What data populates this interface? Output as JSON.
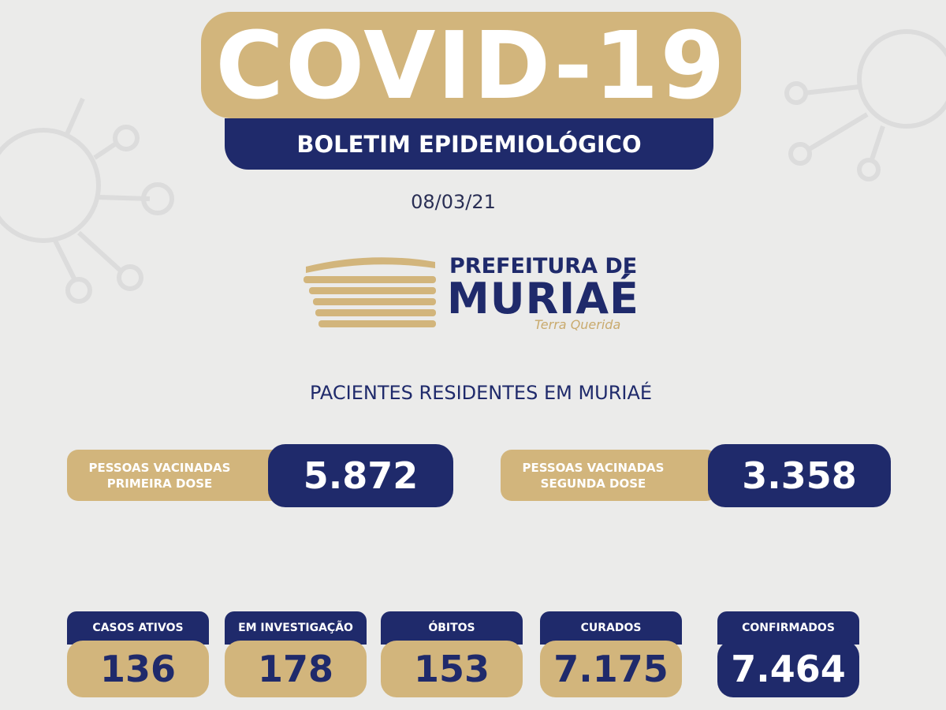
{
  "header": {
    "title": "COVID-19",
    "subtitle": "BOLETIM EPIDEMIOLÓGICO",
    "date": "08/03/21"
  },
  "logo": {
    "line1": "PREFEITURA DE",
    "line2": "MURIAÉ",
    "tagline": "Terra Querida"
  },
  "section_title": "PACIENTES RESIDENTES EM MURIAÉ",
  "vaccinated": [
    {
      "label_lines": [
        "PESSOAS VACINADAS",
        "PRIMEIRA DOSE"
      ],
      "value": "5.872"
    },
    {
      "label_lines": [
        "PESSOAS VACINADAS",
        "SEGUNDA DOSE"
      ],
      "value": "3.358"
    }
  ],
  "stats": [
    {
      "label": "CASOS ATIVOS",
      "value": "136"
    },
    {
      "label": "EM INVESTIGAÇÃO",
      "value": "178"
    },
    {
      "label": "ÓBITOS",
      "value": "153"
    },
    {
      "label": "CURADOS",
      "value": "7.175"
    },
    {
      "label": "CONFIRMADOS",
      "value": "7.464"
    }
  ]
}
